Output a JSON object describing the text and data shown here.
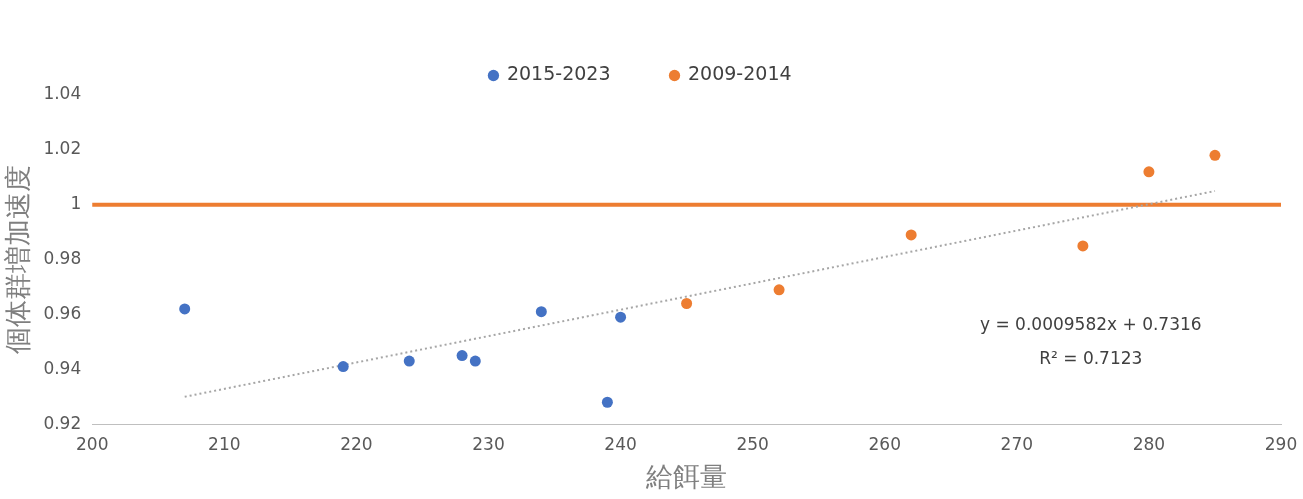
{
  "chart_data": {
    "type": "scatter",
    "xlabel": "給餌量",
    "ylabel": "個体群増加速度",
    "xlim": [
      200,
      290
    ],
    "xticks": [
      200,
      210,
      220,
      230,
      240,
      250,
      260,
      270,
      280,
      290
    ],
    "ylim": [
      0.92,
      1.04
    ],
    "yticks": [
      0.92,
      0.94,
      0.96,
      0.98,
      1,
      1.02,
      1.04
    ],
    "grid": false,
    "legend": "top",
    "marker": "circle",
    "series": [
      {
        "name": "2015-2023",
        "color": "#4472c4",
        "x": [
          207,
          219,
          224,
          228,
          229,
          234,
          239,
          240
        ],
        "values": [
          0.962,
          0.941,
          0.943,
          0.945,
          0.943,
          0.961,
          0.928,
          0.959
        ]
      },
      {
        "name": "2009-2014",
        "color": "#ed7d31",
        "x": [
          245,
          252,
          262,
          275,
          280,
          285
        ],
        "values": [
          0.964,
          0.969,
          0.989,
          0.985,
          1.012,
          1.018
        ]
      },
      {
        "type": "line",
        "color": "#a6a6a6",
        "line_style": "dotted",
        "marker": "none",
        "x": [
          207,
          285
        ],
        "values": [
          0.93,
          1.005
        ]
      }
    ],
    "ref_lines": [
      {
        "axis": "y",
        "value": 1,
        "color": "#ed7d31"
      }
    ],
    "annotations": [
      "y = 0.0009582x + 0.7316",
      "R² = 0.7123"
    ]
  }
}
